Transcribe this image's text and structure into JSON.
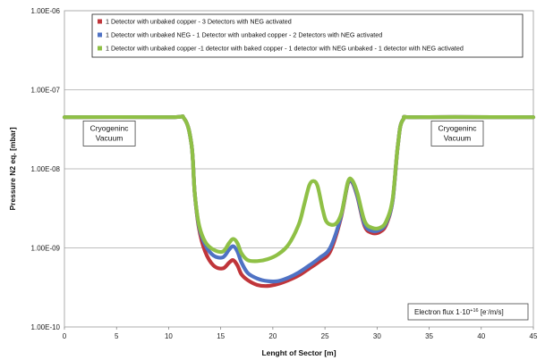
{
  "chart_data": {
    "type": "line",
    "title": "",
    "xlabel": "Lenght of Sector [m]",
    "ylabel": "Pressure N2 eq. [mbar]",
    "xlim": [
      0,
      45
    ],
    "ylim": [
      1e-10,
      1e-06
    ],
    "y_scale": "log",
    "grid": "horizontal",
    "legend_position": "top",
    "x_ticks": [
      "0",
      "5",
      "10",
      "15",
      "20",
      "25",
      "30",
      "35",
      "40",
      "45"
    ],
    "y_ticks": [
      "1.00E-10",
      "1.00E-09",
      "1.00E-08",
      "1.00E-07",
      "1.00E-06"
    ],
    "series": [
      {
        "name": "1 Detector with unbaked copper - 3 Detectors with NEG activated",
        "color": "#c0353a",
        "x": [
          0,
          10,
          11.5,
          12.2,
          12.5,
          12.9,
          13.5,
          14.3,
          15.2,
          15.8,
          16.2,
          16.6,
          17.0,
          17.6,
          18.5,
          19.5,
          20.5,
          21.5,
          22.5,
          23.5,
          24.5,
          25.5,
          26.5,
          27.2,
          27.6,
          28.1,
          28.8,
          29.5,
          30.3,
          30.9,
          31.5,
          32.0,
          32.5,
          34,
          45
        ],
        "y": [
          4.5e-08,
          4.5e-08,
          4.3e-08,
          2e-08,
          5e-09,
          1.8e-09,
          9e-10,
          6e-10,
          5.5e-10,
          6.5e-10,
          7e-10,
          6e-10,
          4.6e-10,
          3.9e-10,
          3.4e-10,
          3.3e-10,
          3.5e-10,
          3.9e-10,
          4.5e-10,
          5.5e-10,
          6.8e-10,
          9e-10,
          2.3e-09,
          6.5e-09,
          6.8e-09,
          4.5e-09,
          1.9e-09,
          1.55e-09,
          1.6e-09,
          2e-09,
          4e-09,
          2e-08,
          4.2e-08,
          4.5e-08,
          4.5e-08
        ]
      },
      {
        "name": "1 Detector with unbaked NEG - 1 Detector with unbaked copper - 2 Detectors with NEG activated",
        "color": "#4f72c4",
        "x": [
          0,
          10,
          11.5,
          12.2,
          12.5,
          12.9,
          13.5,
          14.3,
          15.2,
          15.8,
          16.2,
          16.6,
          17.0,
          17.6,
          18.5,
          19.5,
          20.5,
          21.5,
          22.5,
          23.5,
          24.5,
          25.5,
          26.5,
          27.2,
          27.6,
          28.1,
          28.8,
          29.5,
          30.3,
          30.9,
          31.5,
          32.0,
          32.5,
          34,
          45
        ],
        "y": [
          4.5e-08,
          4.5e-08,
          4.3e-08,
          2e-08,
          5e-09,
          1.9e-09,
          1.1e-09,
          8e-10,
          7.6e-10,
          9.5e-10,
          1.05e-09,
          9e-10,
          6.5e-10,
          4.8e-10,
          4.1e-10,
          3.8e-10,
          3.8e-10,
          4.2e-10,
          4.9e-10,
          6e-10,
          7.5e-10,
          1e-09,
          2.4e-09,
          6.6e-09,
          6.9e-09,
          4.6e-09,
          2e-09,
          1.65e-09,
          1.7e-09,
          2.1e-09,
          4e-09,
          2e-08,
          4.2e-08,
          4.5e-08,
          4.5e-08
        ]
      },
      {
        "name": "1 Detector with unbaked copper -1 detector with baked copper - 1 detector with NEG unbaked - 1 detector with NEG activated",
        "color": "#8fc046",
        "x": [
          0,
          10,
          11.5,
          12.2,
          12.5,
          12.9,
          13.5,
          14.3,
          15.2,
          15.8,
          16.2,
          16.6,
          17.0,
          17.6,
          18.5,
          19.5,
          20.5,
          21.5,
          22.5,
          23.0,
          23.5,
          23.9,
          24.3,
          24.8,
          25.2,
          26.0,
          26.6,
          27.2,
          27.6,
          28.1,
          28.8,
          29.5,
          30.3,
          30.9,
          31.5,
          32.0,
          32.5,
          34,
          45
        ],
        "y": [
          4.5e-08,
          4.5e-08,
          4.3e-08,
          2e-08,
          5e-09,
          2e-09,
          1.2e-09,
          9.5e-10,
          9e-10,
          1.15e-09,
          1.3e-09,
          1.15e-09,
          8.5e-10,
          7e-10,
          6.8e-10,
          7.2e-10,
          8.3e-10,
          1.1e-09,
          2e-09,
          3.5e-09,
          6.2e-09,
          7e-09,
          6e-09,
          3e-09,
          2.1e-09,
          2e-09,
          2.8e-09,
          6.8e-09,
          7.2e-09,
          5e-09,
          2.2e-09,
          1.8e-09,
          1.8e-09,
          2.2e-09,
          4.2e-09,
          2e-08,
          4.2e-08,
          4.5e-08,
          4.5e-08
        ]
      }
    ],
    "annotations": [
      {
        "lines": [
          "Cryogeninc",
          "Vacuum"
        ],
        "at": [
          4.3,
          2.8e-08
        ]
      },
      {
        "lines": [
          "Cryogeninc",
          "Vacuum"
        ],
        "at": [
          37.7,
          2.8e-08
        ]
      }
    ],
    "flux_label": {
      "prefix": "Electron flux 1·10",
      "sup": "+16",
      "suffix_open": " [e",
      "sup2": "-",
      "suffix_close": "/m/s]"
    }
  }
}
